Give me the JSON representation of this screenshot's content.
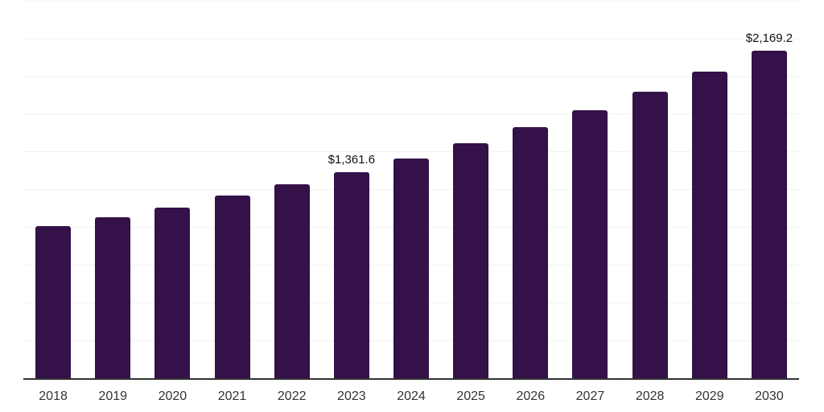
{
  "chart_data": {
    "type": "bar",
    "title": "",
    "xlabel": "",
    "ylabel": "",
    "categories": [
      "2018",
      "2019",
      "2020",
      "2021",
      "2022",
      "2023",
      "2024",
      "2025",
      "2026",
      "2027",
      "2028",
      "2029",
      "2030"
    ],
    "values": [
      1006,
      1065,
      1131,
      1209,
      1285,
      1361.6,
      1455,
      1553,
      1663,
      1775,
      1898,
      2029,
      2169.2
    ],
    "data_labels": [
      {
        "category": "2023",
        "text": "$1,361.6"
      },
      {
        "category": "2030",
        "text": "$2,169.2"
      }
    ],
    "ylim": [
      0,
      2500
    ],
    "gridline_interval": 250,
    "grid": true,
    "legend": false,
    "colors": {
      "bar": "#341148",
      "gridline": "#f2f2f2",
      "axis": "#333333",
      "tick_text": "#333333",
      "value_label_text": "#111111",
      "background": "#ffffff"
    }
  }
}
